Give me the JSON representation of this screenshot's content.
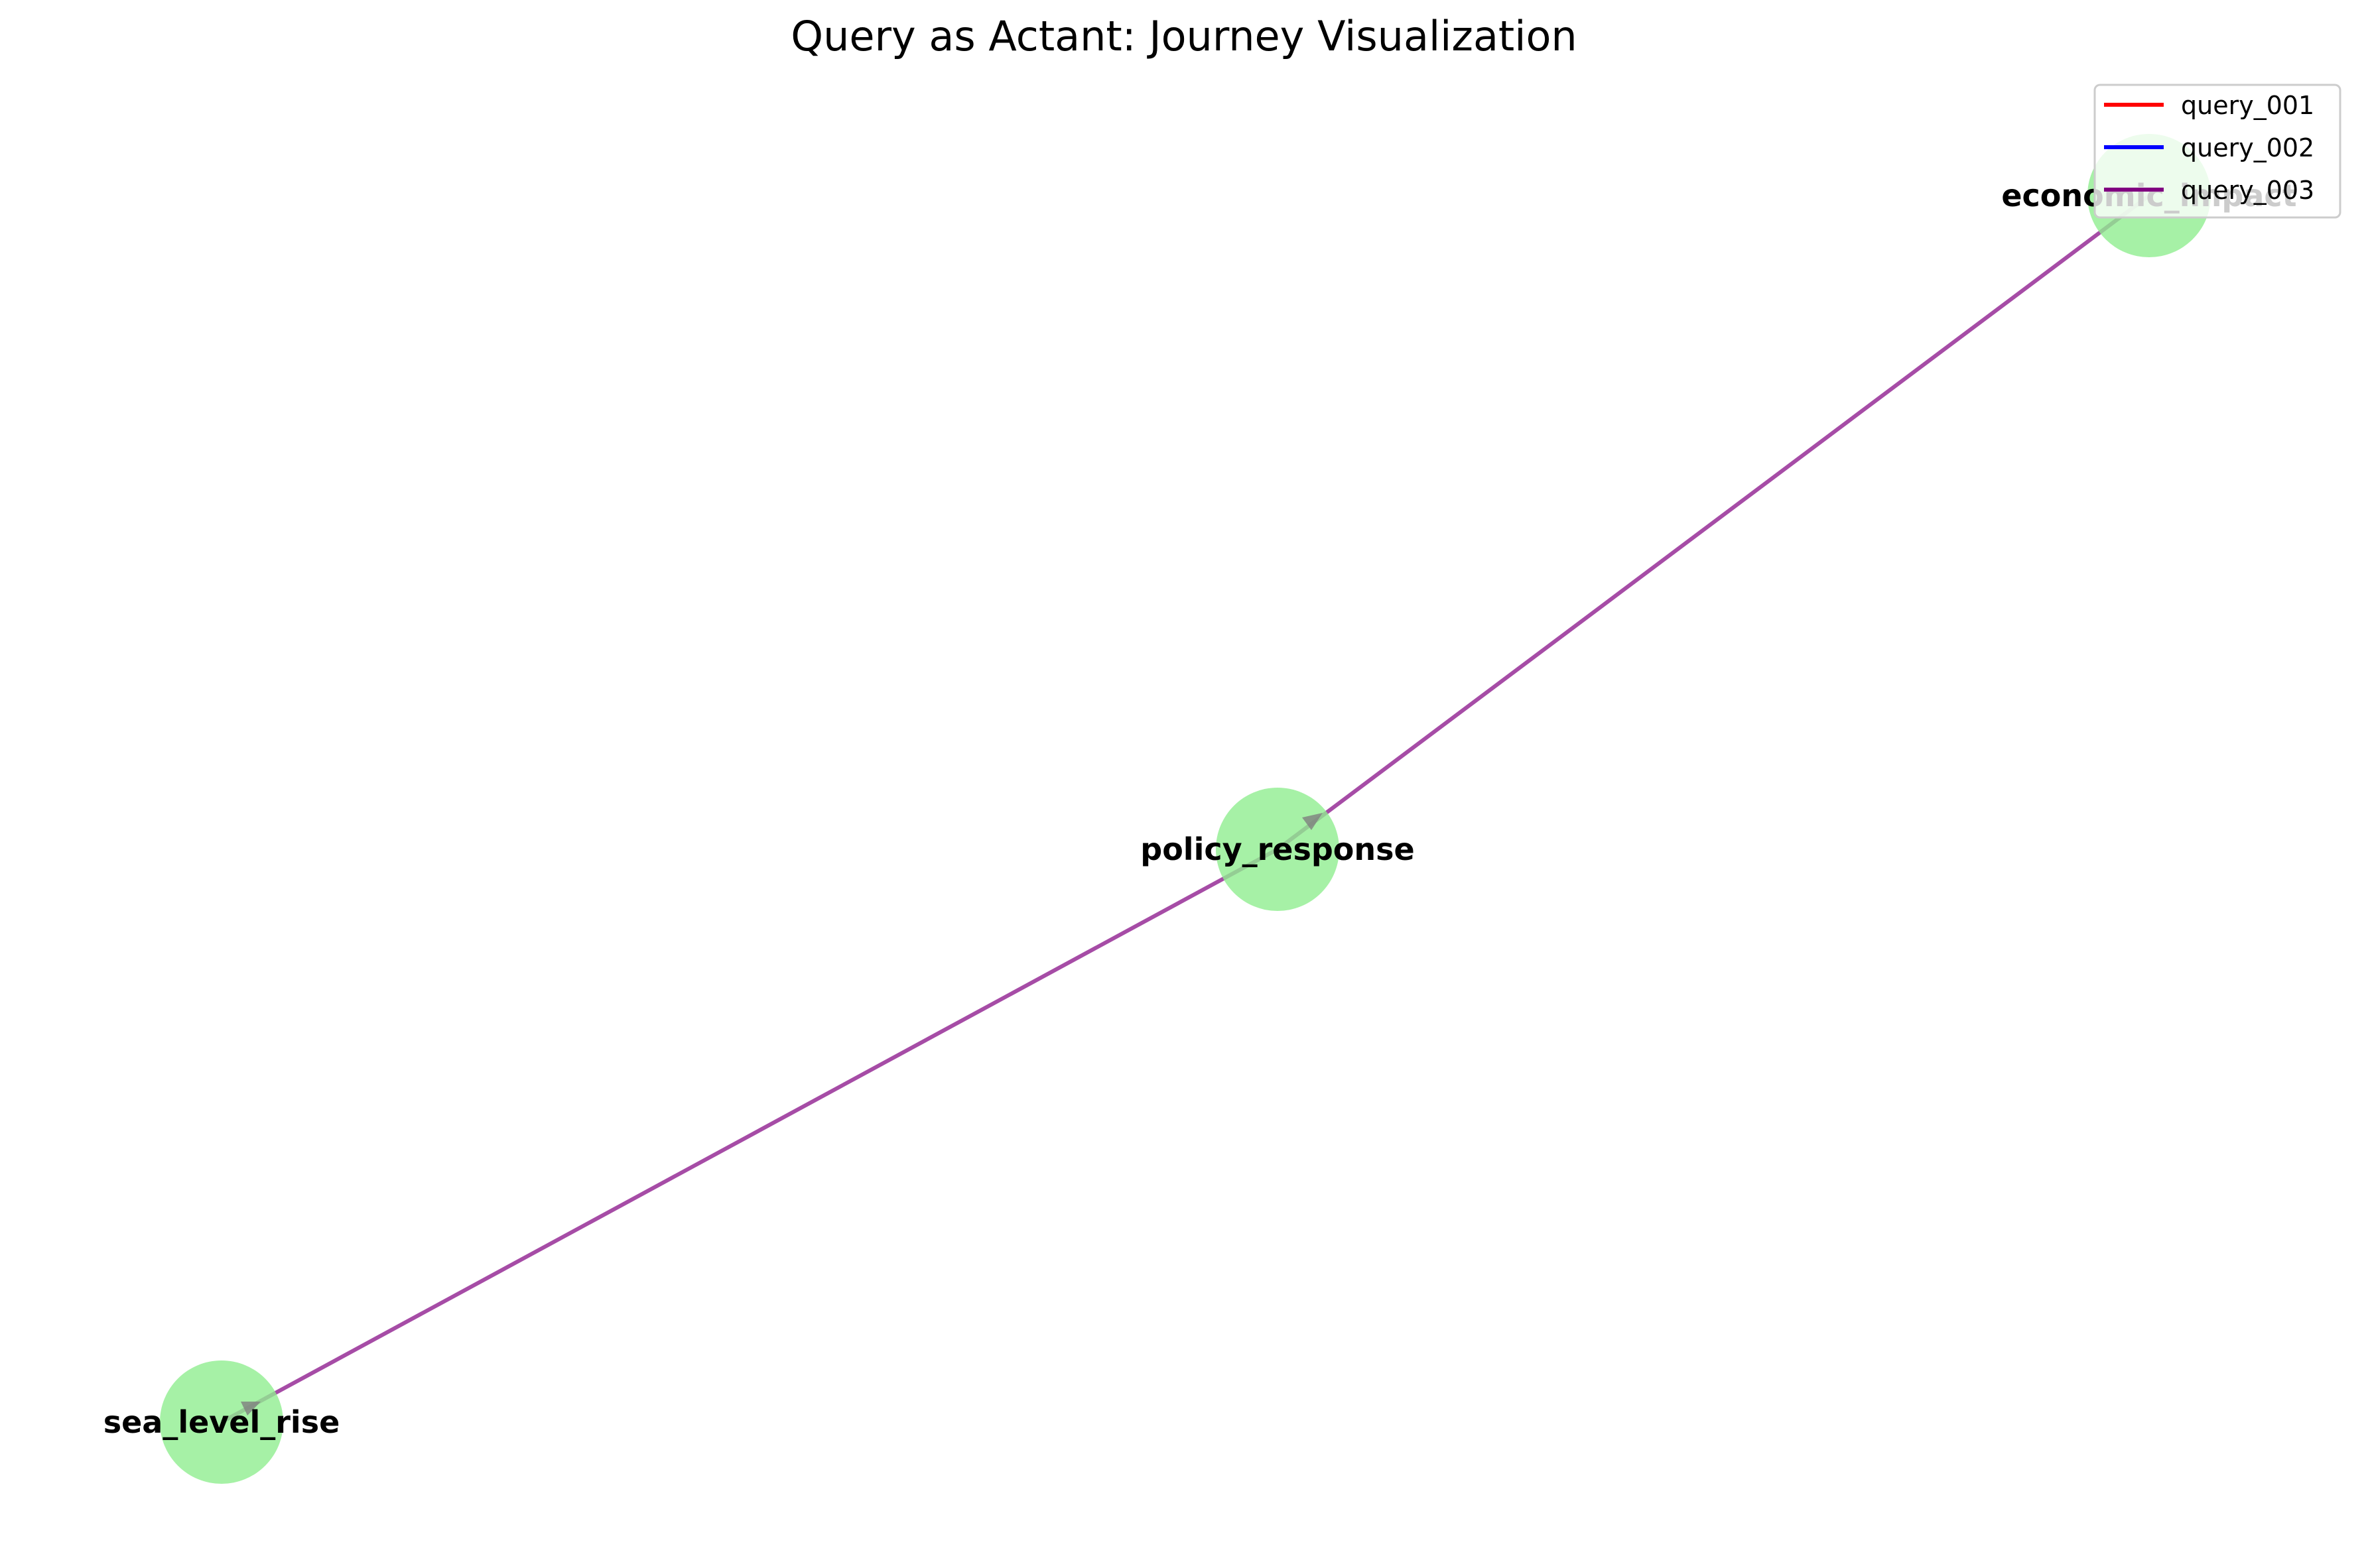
{
  "title": "Query as Actant: Journey Visualization",
  "colors": {
    "node_fill": "#90EE90",
    "arrow_head": "#808080"
  },
  "nodes": [
    {
      "id": "economic_impact",
      "label": "economic_impact"
    },
    {
      "id": "policy_response",
      "label": "policy_response"
    },
    {
      "id": "sea_level_rise",
      "label": "sea_level_rise"
    }
  ],
  "edges": [
    {
      "from": "economic_impact",
      "to": "policy_response",
      "query": "query_003"
    },
    {
      "from": "policy_response",
      "to": "sea_level_rise",
      "query": "query_003"
    }
  ],
  "legend": {
    "items": [
      {
        "label": "query_001",
        "color": "#FF0000"
      },
      {
        "label": "query_002",
        "color": "#0000FF"
      },
      {
        "label": "query_003",
        "color": "#800080"
      }
    ]
  }
}
